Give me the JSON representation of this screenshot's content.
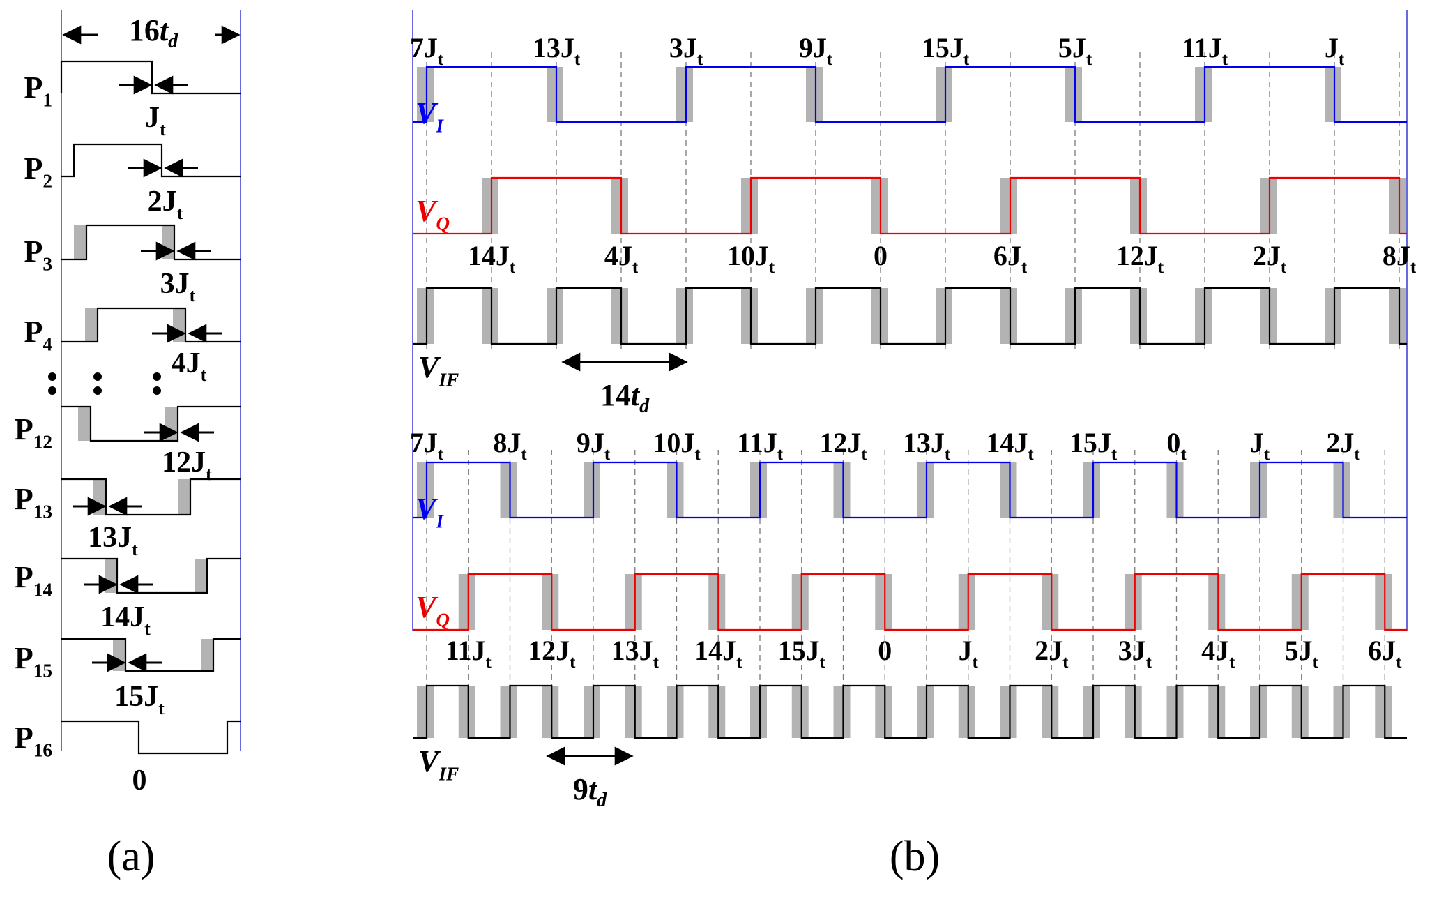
{
  "panel_a": {
    "caption": "(a)",
    "span_label": {
      "main": "16",
      "t": "t",
      "sub": "d"
    },
    "rows": [
      {
        "name": "P",
        "sub": "1",
        "jitter": "J",
        "jsub": "t"
      },
      {
        "name": "P",
        "sub": "2",
        "jitter": "2J",
        "jsub": "t"
      },
      {
        "name": "P",
        "sub": "3",
        "jitter": "3J",
        "jsub": "t"
      },
      {
        "name": "P",
        "sub": "4",
        "jitter": "4J",
        "jsub": "t"
      },
      {
        "name": "P",
        "sub": "12",
        "jitter": "12J",
        "jsub": "t"
      },
      {
        "name": "P",
        "sub": "13",
        "jitter": "13J",
        "jsub": "t"
      },
      {
        "name": "P",
        "sub": "14",
        "jitter": "14J",
        "jsub": "t"
      },
      {
        "name": "P",
        "sub": "15",
        "jitter": "15J",
        "jsub": "t"
      },
      {
        "name": "P",
        "sub": "16",
        "jitter": "0",
        "jsub": ""
      }
    ]
  },
  "panel_b": {
    "caption": "(b)",
    "top": {
      "vi_labels": [
        "7J",
        "13J",
        "3J",
        "9J",
        "15J",
        "5J",
        "11J",
        "J"
      ],
      "vq_labels": [
        "14J",
        "4J",
        "10J",
        "0",
        "6J",
        "12J",
        "2J",
        "8J"
      ],
      "span": {
        "main": "14",
        "t": "t",
        "sub": "d"
      }
    },
    "bottom": {
      "vi_labels": [
        "7J",
        "8J",
        "9J",
        "10J",
        "11J",
        "12J",
        "13J",
        "14J",
        "15J",
        "0",
        "J",
        "2J"
      ],
      "vq_labels": [
        "11J",
        "12J",
        "13J",
        "14J",
        "15J",
        "0",
        "J",
        "2J",
        "3J",
        "4J",
        "5J",
        "6J"
      ],
      "span": {
        "main": "9",
        "t": "t",
        "sub": "d"
      }
    },
    "signal_VI": {
      "letter": "V",
      "sub": "I"
    },
    "signal_VQ": {
      "letter": "V",
      "sub": "Q"
    },
    "signal_VIF": {
      "letter": "V",
      "sub": "IF"
    },
    "jitter_unit_sub": "t"
  },
  "colors": {
    "vi": "#0000ee",
    "vq": "#ee0000",
    "vif": "#000000",
    "jitter": "#b3b3b3",
    "frame": "#6a6adf",
    "grid": "#7a7a7a"
  }
}
